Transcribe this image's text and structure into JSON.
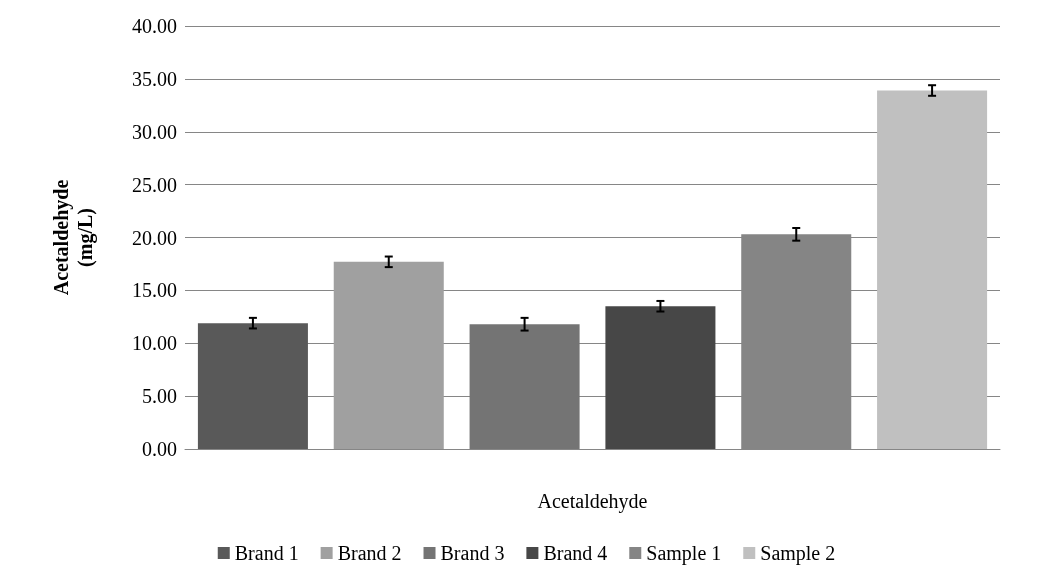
{
  "chart_data": {
    "type": "bar",
    "xlabel": "Acetaldehyde",
    "ylabel": "Acetaldehyde\n(mg/L)",
    "categories": [
      null,
      null,
      null,
      null,
      null,
      null
    ],
    "series": [
      {
        "name": "Brand 1",
        "color": "#595959",
        "values": [
          11.9,
          null,
          null,
          null,
          null,
          null
        ],
        "errors": [
          0.5,
          null,
          null,
          null,
          null,
          null
        ]
      },
      {
        "name": "Brand 2",
        "color": "#a0a0a0",
        "values": [
          null,
          17.7,
          null,
          null,
          null,
          null
        ],
        "errors": [
          null,
          0.5,
          null,
          null,
          null,
          null
        ]
      },
      {
        "name": "Brand 3",
        "color": "#747474",
        "values": [
          null,
          null,
          11.8,
          null,
          null,
          null
        ],
        "errors": [
          null,
          null,
          0.6,
          null,
          null,
          null
        ]
      },
      {
        "name": "Brand 4",
        "color": "#474747",
        "values": [
          null,
          null,
          null,
          13.5,
          null,
          null
        ],
        "errors": [
          null,
          null,
          null,
          0.5,
          null,
          null
        ]
      },
      {
        "name": "Sample 1",
        "color": "#858585",
        "values": [
          null,
          null,
          null,
          null,
          20.3,
          null
        ],
        "errors": [
          null,
          null,
          null,
          null,
          0.6,
          null
        ]
      },
      {
        "name": "Sample 2",
        "color": "#c0c0c0",
        "values": [
          null,
          null,
          null,
          null,
          null,
          33.9
        ],
        "errors": [
          null,
          null,
          null,
          null,
          null,
          0.5
        ]
      }
    ],
    "ylim": [
      0,
      40
    ],
    "yticks": [
      {
        "value": 0,
        "label": "0.00"
      },
      {
        "value": 5,
        "label": "5.00"
      },
      {
        "value": 10,
        "label": "10.00"
      },
      {
        "value": 15,
        "label": "15.00"
      },
      {
        "value": 20,
        "label": "20.00"
      },
      {
        "value": 25,
        "label": "25.00"
      },
      {
        "value": 30,
        "label": "30.00"
      },
      {
        "value": 35,
        "label": "35.00"
      },
      {
        "value": 40,
        "label": "40.00"
      }
    ],
    "grid": "y",
    "legend": "bottom"
  }
}
